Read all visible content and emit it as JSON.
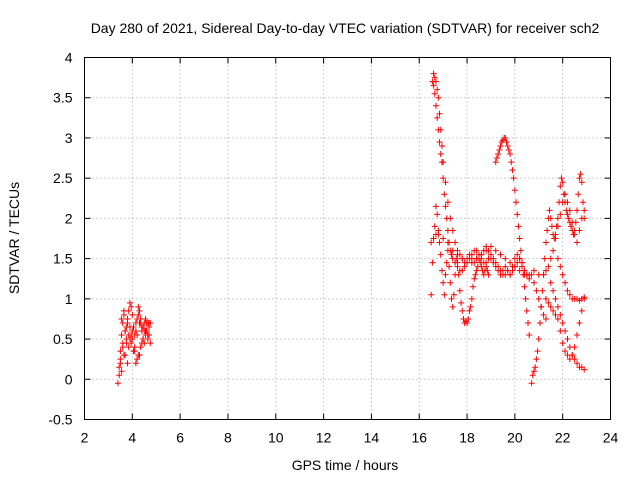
{
  "chart_data": {
    "type": "scatter",
    "title": "Day 280 of 2021, Sidereal Day-to-day VTEC variation (SDTVAR) for receiver sch2",
    "xlabel": "GPS time / hours",
    "ylabel": "SDTVAR / TECUs",
    "xlim": [
      2,
      24
    ],
    "ylim": [
      -0.5,
      4
    ],
    "x_ticks": [
      2,
      4,
      6,
      8,
      10,
      12,
      14,
      16,
      18,
      20,
      22,
      24
    ],
    "y_ticks": [
      -0.5,
      0,
      0.5,
      1,
      1.5,
      2,
      2.5,
      3,
      3.5,
      4
    ],
    "grid": true,
    "marker": "plus",
    "color": "#ff0000",
    "series": [
      {
        "name": "SDTVAR",
        "x": [
          3.4,
          3.45,
          3.5,
          3.55,
          3.6,
          3.65,
          3.7,
          3.75,
          3.8,
          3.85,
          3.9,
          3.95,
          4.0,
          4.05,
          4.1,
          4.15,
          4.2,
          4.25,
          4.3,
          4.35,
          4.4,
          4.45,
          4.5,
          4.55,
          4.6,
          4.65,
          4.7,
          4.75,
          3.5,
          3.6,
          3.7,
          3.8,
          3.9,
          4.0,
          4.1,
          4.2,
          4.3,
          4.4,
          4.5,
          4.6,
          4.7,
          3.55,
          3.65,
          3.75,
          3.85,
          3.95,
          4.05,
          4.15,
          4.25,
          4.35,
          4.45,
          4.55,
          4.65,
          4.75,
          3.45,
          3.5,
          3.6,
          3.7,
          3.8,
          3.9,
          4.0,
          4.1,
          4.2,
          4.3,
          4.4,
          4.5,
          4.6,
          4.7,
          3.55,
          3.65,
          3.75,
          3.85,
          3.95,
          4.05,
          4.15,
          4.25,
          4.35,
          4.45,
          4.55,
          4.65,
          16.5,
          16.55,
          16.6,
          16.65,
          16.7,
          16.75,
          16.8,
          16.85,
          16.9,
          16.95,
          17.0,
          17.05,
          17.1,
          17.15,
          17.2,
          17.25,
          17.3,
          17.35,
          17.4,
          17.45,
          17.5,
          17.55,
          17.6,
          17.65,
          17.7,
          17.75,
          17.8,
          17.85,
          17.9,
          17.95,
          18.0,
          18.05,
          18.1,
          18.15,
          18.2,
          18.25,
          18.3,
          18.35,
          18.4,
          18.45,
          18.5,
          18.55,
          18.6,
          18.65,
          18.7,
          18.75,
          18.8,
          18.85,
          18.9,
          16.55,
          16.6,
          16.65,
          16.7,
          16.75,
          16.8,
          16.85,
          16.9,
          16.95,
          17.0,
          17.1,
          17.2,
          17.3,
          17.4,
          17.5,
          17.6,
          17.7,
          17.8,
          17.9,
          18.0,
          18.1,
          18.2,
          18.3,
          18.4,
          18.5,
          18.6,
          18.7,
          18.8,
          18.9,
          19.0,
          19.1,
          19.2,
          19.3,
          19.4,
          19.5,
          19.6,
          19.7,
          19.8,
          19.9,
          20.0,
          20.1,
          20.2,
          20.3,
          20.4,
          20.5,
          20.6,
          20.7,
          20.8,
          20.9,
          21.0,
          21.1,
          21.2,
          21.3,
          16.6,
          16.65,
          16.7,
          16.75,
          16.8,
          16.85,
          16.9,
          16.95,
          17.0,
          17.05,
          17.1,
          17.15,
          17.2,
          17.25,
          17.3,
          17.35,
          17.4,
          17.5,
          17.6,
          17.7,
          17.8,
          17.9,
          18.0,
          18.1,
          18.2,
          18.3,
          18.4,
          18.5,
          18.6,
          18.7,
          18.8,
          18.9,
          19.0,
          19.1,
          19.2,
          19.3,
          19.4,
          19.5,
          19.6,
          19.7,
          19.8,
          19.9,
          20.0,
          20.1,
          20.2,
          20.3,
          20.4,
          20.5,
          19.2,
          19.25,
          19.3,
          19.35,
          19.4,
          19.45,
          19.5,
          19.55,
          19.6,
          19.65,
          19.7,
          19.75,
          19.8,
          19.85,
          19.9,
          19.95,
          20.0,
          20.05,
          20.1,
          20.15,
          20.2,
          20.25,
          20.3,
          20.35,
          20.4,
          20.45,
          20.5,
          20.55,
          20.6,
          20.7,
          20.75,
          20.8,
          20.85,
          20.9,
          20.95,
          21.0,
          21.05,
          21.1,
          21.15,
          21.2,
          21.25,
          21.3,
          21.35,
          21.4,
          21.45,
          21.5,
          21.55,
          21.6,
          21.65,
          21.7,
          21.75,
          21.8,
          21.85,
          21.9,
          21.95,
          22.0,
          22.05,
          22.1,
          22.15,
          22.2,
          22.25,
          22.3,
          22.35,
          22.4,
          22.45,
          22.5,
          22.55,
          22.6,
          22.65,
          22.7,
          22.75,
          22.8,
          22.85,
          22.9,
          21.2,
          21.3,
          21.4,
          21.5,
          21.6,
          21.7,
          21.8,
          21.9,
          22.0,
          22.1,
          22.2,
          22.3,
          22.4,
          22.5,
          22.6,
          22.7,
          22.8,
          22.9,
          21.5,
          21.6,
          21.7,
          21.8,
          21.9,
          22.0,
          22.1,
          22.2,
          22.3,
          22.4,
          22.5,
          22.6,
          22.7,
          22.8,
          22.9,
          21.3,
          21.4,
          21.5,
          21.6,
          21.7,
          21.8,
          21.9,
          22.0,
          22.1,
          22.2,
          22.3,
          22.4,
          22.5,
          22.6,
          22.7,
          22.8,
          22.9,
          21.8,
          21.9,
          22.0,
          22.1,
          22.2,
          22.3,
          22.4,
          22.5,
          22.6,
          22.7,
          22.8,
          22.9,
          16.5,
          16.6,
          16.7,
          16.8,
          17.0,
          17.2,
          17.4,
          17.6,
          17.8,
          18.0,
          18.2,
          18.4,
          18.6,
          18.8,
          19.0,
          19.2,
          19.4,
          19.6,
          19.8,
          20.0,
          20.2,
          20.4,
          20.6,
          20.8,
          21.0
        ],
        "y": [
          -0.05,
          0.15,
          0.35,
          0.55,
          0.7,
          0.8,
          0.6,
          0.45,
          0.7,
          0.85,
          0.95,
          0.9,
          0.8,
          0.65,
          0.55,
          0.6,
          0.75,
          0.9,
          0.85,
          0.7,
          0.6,
          0.5,
          0.7,
          0.75,
          0.6,
          0.55,
          0.65,
          0.7,
          0.25,
          0.45,
          0.6,
          0.75,
          0.65,
          0.5,
          0.35,
          0.25,
          0.3,
          0.45,
          0.6,
          0.7,
          0.55,
          0.1,
          0.3,
          0.5,
          0.4,
          0.55,
          0.65,
          0.7,
          0.8,
          0.75,
          0.65,
          0.55,
          0.5,
          0.45,
          0.05,
          0.2,
          0.4,
          0.3,
          0.2,
          0.5,
          0.6,
          0.4,
          0.55,
          0.7,
          0.65,
          0.45,
          0.6,
          0.7,
          0.75,
          0.85,
          0.65,
          0.55,
          0.45,
          0.35,
          0.2,
          0.3,
          0.4,
          0.5,
          0.6,
          0.7,
          1.05,
          1.45,
          1.75,
          1.9,
          2.15,
          2.05,
          1.85,
          1.7,
          1.55,
          1.35,
          1.2,
          1.05,
          1.3,
          1.45,
          1.6,
          1.4,
          1.2,
          1.0,
          0.9,
          1.05,
          1.3,
          1.5,
          1.45,
          1.3,
          1.1,
          0.95,
          0.85,
          0.75,
          0.7,
          0.72,
          0.7,
          0.75,
          0.85,
          0.9,
          1.0,
          1.15,
          1.25,
          1.3,
          1.35,
          1.4,
          1.5,
          1.45,
          1.4,
          1.35,
          1.3,
          1.35,
          1.4,
          1.35,
          1.3,
          3.7,
          3.8,
          3.75,
          3.7,
          3.6,
          3.5,
          3.3,
          3.1,
          2.9,
          2.7,
          2.45,
          2.2,
          2.0,
          1.85,
          1.7,
          1.6,
          1.55,
          1.5,
          1.45,
          1.5,
          1.55,
          1.5,
          1.45,
          1.5,
          1.5,
          1.55,
          1.6,
          1.65,
          1.6,
          1.5,
          1.45,
          1.4,
          1.35,
          1.3,
          1.35,
          1.4,
          1.35,
          1.3,
          1.4,
          1.5,
          1.55,
          1.5,
          1.45,
          1.35,
          1.3,
          1.25,
          1.3,
          1.2,
          1.1,
          1.0,
          0.9,
          0.8,
          0.75,
          3.65,
          3.55,
          3.4,
          3.25,
          3.1,
          2.95,
          2.8,
          2.7,
          2.5,
          2.3,
          2.15,
          2.0,
          1.85,
          1.7,
          1.6,
          1.55,
          1.5,
          1.45,
          1.4,
          1.35,
          1.35,
          1.4,
          1.45,
          1.5,
          1.55,
          1.6,
          1.6,
          1.55,
          1.5,
          1.45,
          1.45,
          1.5,
          1.55,
          1.5,
          1.45,
          1.4,
          1.35,
          1.3,
          1.3,
          1.35,
          1.3,
          1.35,
          1.4,
          1.45,
          1.5,
          1.4,
          1.35,
          1.3,
          2.7,
          2.75,
          2.8,
          2.85,
          2.9,
          2.95,
          2.97,
          3.0,
          3.0,
          2.95,
          2.9,
          2.85,
          2.8,
          2.7,
          2.6,
          2.5,
          2.35,
          2.2,
          2.05,
          1.9,
          1.75,
          1.6,
          1.45,
          1.3,
          1.15,
          1.0,
          0.85,
          0.7,
          0.55,
          -0.05,
          0.05,
          0.1,
          0.15,
          0.25,
          0.35,
          0.5,
          0.7,
          0.9,
          1.1,
          1.3,
          1.5,
          1.7,
          1.85,
          2.0,
          2.1,
          2.0,
          1.9,
          1.8,
          1.75,
          1.8,
          1.9,
          2.0,
          2.2,
          2.4,
          2.5,
          2.45,
          2.3,
          2.2,
          2.1,
          2.05,
          2.0,
          1.95,
          1.9,
          1.85,
          1.8,
          1.85,
          1.95,
          2.1,
          2.3,
          2.5,
          2.55,
          2.45,
          2.2,
          2.0,
          1.3,
          1.35,
          1.4,
          1.5,
          1.6,
          1.75,
          1.9,
          2.05,
          2.2,
          2.3,
          2.2,
          2.1,
          1.95,
          1.8,
          1.7,
          1.85,
          2.0,
          2.1,
          1.2,
          1.1,
          1.0,
          0.9,
          0.8,
          0.7,
          0.6,
          0.5,
          0.4,
          0.3,
          0.25,
          0.2,
          0.15,
          0.15,
          0.12,
          1.0,
          0.95,
          0.9,
          0.85,
          0.8,
          0.75,
          0.6,
          0.45,
          0.35,
          0.3,
          0.25,
          0.3,
          0.4,
          0.55,
          0.7,
          0.85,
          1.0,
          1.5,
          1.4,
          1.3,
          1.2,
          1.1,
          1.05,
          1.0,
          1.0,
          1.0,
          0.98,
          1.0,
          1.02,
          1.7,
          1.75,
          1.8,
          1.8,
          1.75,
          1.7,
          1.6,
          1.55,
          1.5,
          1.45,
          1.45,
          1.5,
          1.55,
          1.6,
          1.65,
          1.6,
          1.55,
          1.5,
          1.45,
          1.4,
          1.35,
          1.3,
          1.3,
          1.35,
          1.3
        ]
      }
    ]
  }
}
